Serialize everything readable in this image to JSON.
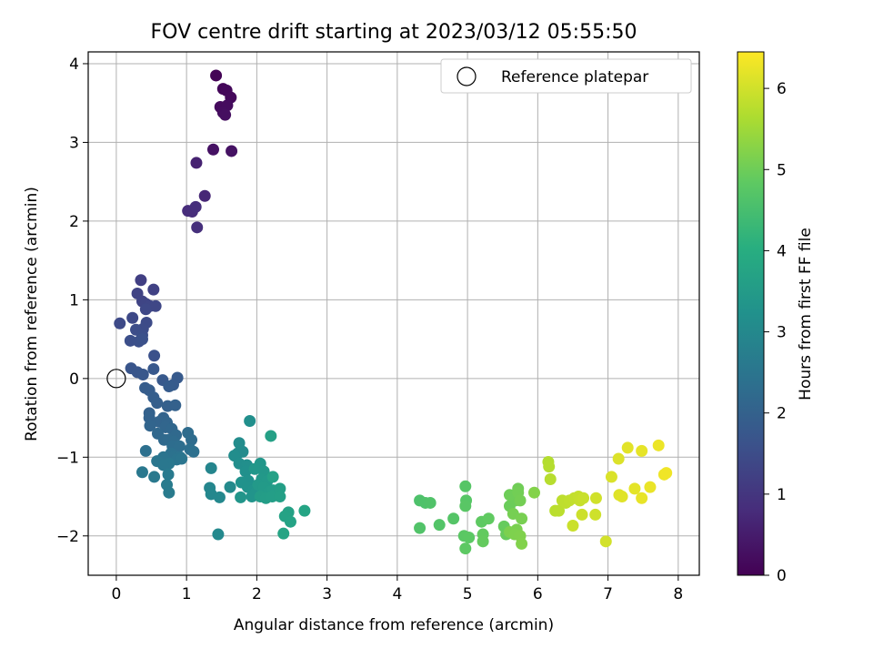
{
  "chart_data": {
    "type": "scatter",
    "title": "FOV centre drift starting at 2023/03/12 05:55:50",
    "xlabel": "Angular distance from reference (arcmin)",
    "ylabel": "Rotation from reference (arcmin)",
    "xlim": [
      -0.4,
      8.3
    ],
    "ylim": [
      -2.5,
      4.15
    ],
    "xticks": [
      0,
      1,
      2,
      3,
      4,
      5,
      6,
      7,
      8
    ],
    "yticks": [
      -2,
      -1,
      0,
      1,
      2,
      3,
      4
    ],
    "grid": true,
    "legend": {
      "placement": "top-right",
      "entries": [
        "Reference platepar"
      ]
    },
    "reference_point": {
      "x": 0,
      "y": 0
    },
    "colorbar": {
      "label": "Hours from first FF file",
      "range": [
        0,
        6.45
      ],
      "ticks": [
        0,
        1,
        2,
        3,
        4,
        5,
        6
      ],
      "colormap": "viridis"
    },
    "series": [
      {
        "color_by": "hours",
        "points": [
          [
            1.42,
            3.85,
            0.05
          ],
          [
            1.52,
            3.68,
            0.1
          ],
          [
            1.57,
            3.66,
            0.12
          ],
          [
            1.63,
            3.57,
            0.15
          ],
          [
            1.48,
            3.45,
            0.18
          ],
          [
            1.58,
            3.47,
            0.2
          ],
          [
            1.52,
            3.38,
            0.22
          ],
          [
            1.55,
            3.35,
            0.25
          ],
          [
            1.38,
            2.91,
            0.3
          ],
          [
            1.64,
            2.89,
            0.32
          ],
          [
            1.14,
            2.74,
            0.6
          ],
          [
            1.26,
            2.32,
            0.7
          ],
          [
            1.02,
            2.13,
            0.8
          ],
          [
            1.08,
            2.12,
            0.82
          ],
          [
            1.13,
            2.18,
            0.85
          ],
          [
            1.15,
            1.92,
            0.88
          ],
          [
            0.35,
            1.25,
            1.2
          ],
          [
            0.53,
            1.13,
            1.25
          ],
          [
            0.3,
            1.08,
            1.28
          ],
          [
            0.37,
            0.98,
            1.3
          ],
          [
            0.42,
            0.95,
            1.32
          ],
          [
            0.48,
            0.92,
            1.35
          ],
          [
            0.56,
            0.92,
            1.37
          ],
          [
            0.42,
            0.88,
            1.4
          ],
          [
            0.23,
            0.77,
            1.42
          ],
          [
            0.05,
            0.7,
            1.44
          ],
          [
            0.43,
            0.71,
            1.46
          ],
          [
            0.38,
            0.63,
            1.48
          ],
          [
            0.28,
            0.62,
            1.5
          ],
          [
            0.37,
            0.55,
            1.52
          ],
          [
            0.2,
            0.48,
            1.54
          ],
          [
            0.32,
            0.47,
            1.56
          ],
          [
            0.37,
            0.5,
            1.58
          ],
          [
            0.54,
            0.29,
            1.6
          ],
          [
            0.21,
            0.13,
            1.7
          ],
          [
            0.3,
            0.08,
            1.72
          ],
          [
            0.38,
            0.05,
            1.74
          ],
          [
            0.53,
            0.12,
            1.76
          ],
          [
            0.66,
            -0.02,
            1.8
          ],
          [
            0.87,
            0.01,
            1.82
          ],
          [
            0.81,
            -0.08,
            1.84
          ],
          [
            0.75,
            -0.1,
            1.86
          ],
          [
            0.41,
            -0.12,
            1.88
          ],
          [
            0.47,
            -0.15,
            1.9
          ],
          [
            0.53,
            -0.24,
            1.92
          ],
          [
            0.58,
            -0.31,
            1.94
          ],
          [
            0.73,
            -0.35,
            1.96
          ],
          [
            0.84,
            -0.34,
            1.98
          ],
          [
            0.47,
            -0.44,
            2.0
          ],
          [
            0.47,
            -0.5,
            2.02
          ],
          [
            0.67,
            -0.5,
            2.04
          ],
          [
            0.61,
            -0.55,
            2.06
          ],
          [
            0.72,
            -0.56,
            2.08
          ],
          [
            0.48,
            -0.6,
            2.1
          ],
          [
            0.7,
            -0.62,
            2.12
          ],
          [
            0.79,
            -0.64,
            2.14
          ],
          [
            0.59,
            -0.7,
            2.16
          ],
          [
            0.85,
            -0.72,
            2.18
          ],
          [
            0.68,
            -0.78,
            2.2
          ],
          [
            0.74,
            -0.78,
            2.22
          ],
          [
            0.82,
            -0.8,
            2.24
          ],
          [
            1.02,
            -0.69,
            2.26
          ],
          [
            1.07,
            -0.78,
            2.28
          ],
          [
            0.8,
            -0.86,
            2.3
          ],
          [
            0.9,
            -0.86,
            2.32
          ],
          [
            1.05,
            -0.9,
            2.34
          ],
          [
            1.1,
            -0.93,
            2.36
          ],
          [
            0.42,
            -0.92,
            2.38
          ],
          [
            0.78,
            -0.95,
            2.4
          ],
          [
            0.83,
            -0.99,
            2.42
          ],
          [
            0.91,
            -1.0,
            2.44
          ],
          [
            0.67,
            -1.0,
            2.46
          ],
          [
            0.86,
            -1.03,
            2.48
          ],
          [
            0.93,
            -1.02,
            2.5
          ],
          [
            0.58,
            -1.05,
            2.52
          ],
          [
            0.75,
            -1.08,
            2.54
          ],
          [
            0.67,
            -1.1,
            2.56
          ],
          [
            0.37,
            -1.19,
            2.58
          ],
          [
            0.54,
            -1.25,
            2.6
          ],
          [
            0.74,
            -1.22,
            2.62
          ],
          [
            0.72,
            -1.35,
            2.64
          ],
          [
            0.75,
            -1.45,
            2.66
          ],
          [
            1.35,
            -1.14,
            2.9
          ],
          [
            1.33,
            -1.39,
            2.95
          ],
          [
            1.35,
            -1.47,
            2.97
          ],
          [
            1.47,
            -1.51,
            3.0
          ],
          [
            1.45,
            -1.98,
            3.02
          ],
          [
            1.62,
            -1.38,
            3.04
          ],
          [
            1.73,
            -0.95,
            3.06
          ],
          [
            1.8,
            -0.93,
            3.08
          ],
          [
            1.75,
            -0.82,
            3.1
          ],
          [
            1.68,
            -0.98,
            3.12
          ],
          [
            1.75,
            -1.08,
            3.14
          ],
          [
            1.86,
            -1.1,
            3.16
          ],
          [
            1.9,
            -0.54,
            3.18
          ],
          [
            1.84,
            -1.18,
            3.2
          ],
          [
            1.88,
            -1.3,
            3.22
          ],
          [
            1.78,
            -1.32,
            3.24
          ],
          [
            1.87,
            -1.38,
            3.26
          ],
          [
            1.95,
            -1.42,
            3.28
          ],
          [
            2.0,
            -1.43,
            3.3
          ],
          [
            1.93,
            -1.5,
            3.32
          ],
          [
            1.77,
            -1.51,
            3.34
          ],
          [
            2.05,
            -1.08,
            3.36
          ],
          [
            1.97,
            -1.15,
            3.38
          ],
          [
            2.1,
            -1.18,
            3.4
          ],
          [
            2.07,
            -1.28,
            3.42
          ],
          [
            2.15,
            -1.3,
            3.44
          ],
          [
            2.02,
            -1.35,
            3.46
          ],
          [
            2.1,
            -1.38,
            3.48
          ],
          [
            2.18,
            -1.43,
            3.5
          ],
          [
            2.23,
            -1.42,
            3.52
          ],
          [
            2.05,
            -1.5,
            3.54
          ],
          [
            2.13,
            -1.52,
            3.56
          ],
          [
            2.22,
            -1.5,
            3.58
          ],
          [
            2.33,
            -1.4,
            3.6
          ],
          [
            2.33,
            -1.5,
            3.62
          ],
          [
            2.2,
            -0.73,
            3.64
          ],
          [
            2.23,
            -1.25,
            3.66
          ],
          [
            2.45,
            -1.7,
            3.68
          ],
          [
            2.4,
            -1.75,
            3.7
          ],
          [
            2.48,
            -1.82,
            3.72
          ],
          [
            2.68,
            -1.68,
            3.74
          ],
          [
            2.38,
            -1.97,
            3.76
          ],
          [
            4.32,
            -1.55,
            4.6
          ],
          [
            4.4,
            -1.58,
            4.62
          ],
          [
            4.47,
            -1.58,
            4.64
          ],
          [
            4.32,
            -1.9,
            4.66
          ],
          [
            4.6,
            -1.86,
            4.68
          ],
          [
            4.8,
            -1.78,
            4.7
          ],
          [
            4.97,
            -1.37,
            4.72
          ],
          [
            4.98,
            -1.55,
            4.74
          ],
          [
            4.97,
            -1.62,
            4.76
          ],
          [
            4.95,
            -2.0,
            4.78
          ],
          [
            5.02,
            -2.02,
            4.8
          ],
          [
            4.97,
            -2.16,
            4.82
          ],
          [
            5.2,
            -1.82,
            4.84
          ],
          [
            5.3,
            -1.78,
            4.86
          ],
          [
            5.22,
            -1.98,
            4.88
          ],
          [
            5.22,
            -2.07,
            4.9
          ],
          [
            5.52,
            -1.88,
            4.92
          ],
          [
            5.55,
            -1.98,
            4.94
          ],
          [
            5.6,
            -1.62,
            4.96
          ],
          [
            5.68,
            -1.55,
            4.98
          ],
          [
            5.6,
            -1.48,
            5.0
          ],
          [
            5.72,
            -1.4,
            5.02
          ],
          [
            5.72,
            -1.45,
            5.04
          ],
          [
            5.75,
            -1.55,
            5.06
          ],
          [
            5.65,
            -1.72,
            5.08
          ],
          [
            5.77,
            -1.78,
            5.1
          ],
          [
            5.7,
            -1.92,
            5.12
          ],
          [
            5.6,
            -1.95,
            5.14
          ],
          [
            5.67,
            -1.98,
            5.16
          ],
          [
            5.75,
            -2.0,
            5.18
          ],
          [
            5.77,
            -2.1,
            5.2
          ],
          [
            5.95,
            -1.45,
            5.22
          ],
          [
            6.15,
            -1.06,
            5.7
          ],
          [
            6.16,
            -1.12,
            5.72
          ],
          [
            6.18,
            -1.28,
            5.74
          ],
          [
            6.25,
            -1.68,
            5.76
          ],
          [
            6.3,
            -1.68,
            5.78
          ],
          [
            6.35,
            -1.55,
            5.8
          ],
          [
            6.4,
            -1.58,
            5.82
          ],
          [
            6.45,
            -1.55,
            5.84
          ],
          [
            6.52,
            -1.52,
            5.86
          ],
          [
            6.58,
            -1.5,
            5.88
          ],
          [
            6.6,
            -1.55,
            5.9
          ],
          [
            6.65,
            -1.52,
            5.92
          ],
          [
            6.5,
            -1.87,
            5.94
          ],
          [
            6.63,
            -1.73,
            5.96
          ],
          [
            6.82,
            -1.73,
            5.98
          ],
          [
            6.83,
            -1.52,
            6.0
          ],
          [
            6.97,
            -2.07,
            6.02
          ],
          [
            7.05,
            -1.25,
            6.1
          ],
          [
            7.15,
            -1.02,
            6.12
          ],
          [
            7.16,
            -1.48,
            6.14
          ],
          [
            7.2,
            -1.5,
            6.16
          ],
          [
            7.28,
            -0.88,
            6.18
          ],
          [
            7.38,
            -1.4,
            6.2
          ],
          [
            7.48,
            -0.92,
            6.22
          ],
          [
            7.48,
            -1.52,
            6.24
          ],
          [
            7.6,
            -1.38,
            6.26
          ],
          [
            7.72,
            -0.85,
            6.28
          ],
          [
            7.8,
            -1.22,
            6.3
          ],
          [
            7.83,
            -1.2,
            6.32
          ]
        ]
      }
    ]
  }
}
